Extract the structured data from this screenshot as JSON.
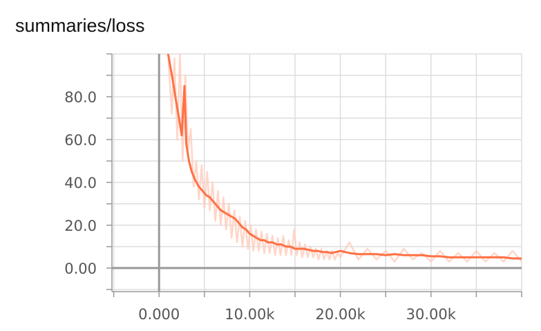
{
  "chart_data": {
    "type": "line",
    "title": "summaries/loss",
    "xlabel": "",
    "ylabel": "",
    "xlim": [
      -5200,
      40000
    ],
    "ylim": [
      -11,
      100
    ],
    "x_ticks": [
      0,
      10000,
      20000,
      30000
    ],
    "x_tick_labels": [
      "0.000",
      "10.00k",
      "20.00k",
      "30.00k"
    ],
    "y_ticks": [
      0,
      20,
      40,
      60,
      80
    ],
    "y_tick_labels": [
      "0.00",
      "20.0",
      "40.0",
      "60.0",
      "80.0"
    ],
    "grid": true,
    "colors": {
      "smoothed": "#ff7043",
      "raw": "#ffccbc",
      "axis": "#999999",
      "grid": "#dddddd"
    },
    "series": [
      {
        "role": "smoothed",
        "x": [
          1000,
          1500,
          1800,
          2200,
          2500,
          2800,
          3000,
          3300,
          3600,
          4000,
          4400,
          4800,
          5200,
          5600,
          6000,
          6400,
          6800,
          7200,
          7600,
          8000,
          8400,
          8800,
          9200,
          9600,
          10000,
          10400,
          10800,
          11200,
          11600,
          12000,
          12500,
          13000,
          13500,
          14000,
          14500,
          15000,
          15500,
          16000,
          16500,
          17000,
          17500,
          18000,
          18500,
          19000,
          19500,
          20000,
          21000,
          22000,
          23000,
          24000,
          25000,
          26000,
          27000,
          28000,
          29000,
          30000,
          31000,
          32000,
          33000,
          34000,
          35000,
          36000,
          37000,
          38000,
          39000,
          40000
        ],
        "y": [
          100,
          88,
          80,
          70,
          62,
          85,
          58,
          50,
          45,
          41,
          38,
          36,
          34,
          33,
          31,
          29,
          27,
          26,
          25,
          24,
          23,
          21,
          19,
          18,
          16,
          15,
          14,
          13,
          13,
          12,
          12,
          11,
          11,
          10,
          10,
          9,
          9,
          9,
          8.5,
          8,
          8,
          7.5,
          7.5,
          7,
          7.5,
          8,
          7,
          6.5,
          6.5,
          6.5,
          6,
          6.5,
          6,
          6,
          6,
          5.5,
          5.5,
          5,
          5,
          5,
          5,
          5,
          5,
          5,
          4.5,
          4.5
        ]
      },
      {
        "role": "raw",
        "x": [
          1000,
          1400,
          1700,
          2000,
          2300,
          2600,
          2900,
          3200,
          3500,
          3800,
          4100,
          4400,
          4700,
          5000,
          5300,
          5600,
          5900,
          6200,
          6500,
          6800,
          7100,
          7400,
          7700,
          8000,
          8300,
          8600,
          8900,
          9200,
          9500,
          9800,
          10100,
          10400,
          10700,
          11000,
          11300,
          11600,
          11900,
          12200,
          12500,
          12800,
          13100,
          13400,
          13700,
          14000,
          14300,
          14600,
          14900,
          15200,
          15500,
          15800,
          16100,
          16400,
          16700,
          17000,
          17300,
          17600,
          17900,
          18200,
          18500,
          18800,
          19100,
          19400,
          19700,
          20000,
          21000,
          22000,
          23000,
          24000,
          25000,
          26000,
          27000,
          28000,
          29000,
          30000,
          31000,
          32000,
          33000,
          34000,
          35000,
          36000,
          37000,
          38000,
          39000,
          40000
        ],
        "y": [
          100,
          72,
          98,
          60,
          100,
          50,
          90,
          55,
          65,
          38,
          50,
          32,
          48,
          28,
          45,
          27,
          40,
          22,
          36,
          20,
          33,
          18,
          30,
          14,
          27,
          12,
          24,
          10,
          22,
          9,
          20,
          8,
          18,
          8,
          17,
          7,
          16,
          7,
          15,
          6,
          14,
          6,
          15,
          6,
          13,
          6,
          18,
          6,
          12,
          5,
          11,
          5,
          10,
          5,
          9,
          4,
          9,
          4,
          8,
          4,
          8,
          4,
          7,
          5,
          12,
          4,
          9,
          4,
          8,
          3,
          9,
          4,
          7,
          3,
          8,
          3,
          7,
          3,
          8,
          3,
          7,
          3,
          8,
          3
        ]
      }
    ]
  }
}
